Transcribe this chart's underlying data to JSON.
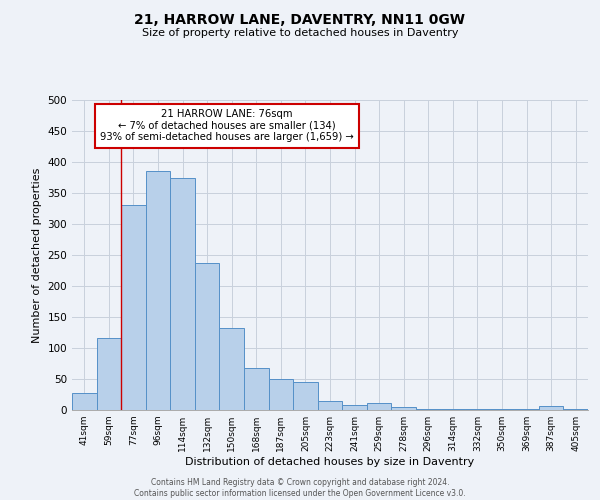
{
  "title": "21, HARROW LANE, DAVENTRY, NN11 0GW",
  "subtitle": "Size of property relative to detached houses in Daventry",
  "xlabel": "Distribution of detached houses by size in Daventry",
  "ylabel": "Number of detached properties",
  "categories": [
    "41sqm",
    "59sqm",
    "77sqm",
    "96sqm",
    "114sqm",
    "132sqm",
    "150sqm",
    "168sqm",
    "187sqm",
    "205sqm",
    "223sqm",
    "241sqm",
    "259sqm",
    "278sqm",
    "296sqm",
    "314sqm",
    "332sqm",
    "350sqm",
    "369sqm",
    "387sqm",
    "405sqm"
  ],
  "bar_heights": [
    27,
    116,
    330,
    385,
    375,
    237,
    132,
    68,
    50,
    45,
    15,
    8,
    12,
    5,
    1,
    1,
    1,
    1,
    1,
    6,
    1
  ],
  "bar_color": "#b8d0ea",
  "bar_edge_color": "#5590c8",
  "ylim": [
    0,
    500
  ],
  "yticks": [
    0,
    50,
    100,
    150,
    200,
    250,
    300,
    350,
    400,
    450,
    500
  ],
  "property_line_index": 2,
  "property_label": "21 HARROW LANE: 76sqm",
  "annotation_line1": "← 7% of detached houses are smaller (134)",
  "annotation_line2": "93% of semi-detached houses are larger (1,659) →",
  "annotation_box_color": "#ffffff",
  "annotation_box_edge_color": "#cc0000",
  "vline_color": "#cc0000",
  "grid_color": "#c8d0dc",
  "background_color": "#eef2f8",
  "footer_line1": "Contains HM Land Registry data © Crown copyright and database right 2024.",
  "footer_line2": "Contains public sector information licensed under the Open Government Licence v3.0."
}
